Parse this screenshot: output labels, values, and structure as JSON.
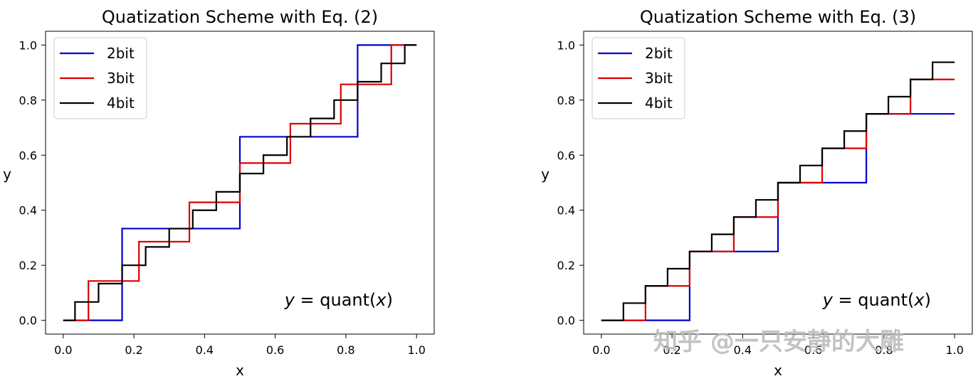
{
  "watermark": "知乎 @一只安静的大雕",
  "colors": {
    "2bit": "#0000cc",
    "3bit": "#dd0000",
    "4bit": "#000000"
  },
  "chart_data": [
    {
      "type": "line",
      "step": "post",
      "title": "Quatization Scheme with Eq. (2)",
      "xlabel": "x",
      "ylabel": "y",
      "annotation": "y = quant(x)",
      "annotation_var": "y",
      "annotation_eq": " = quant(",
      "annotation_x": "x",
      "annotation_close": ")",
      "xlim": [
        -0.05,
        1.05
      ],
      "ylim": [
        -0.05,
        1.05
      ],
      "xticks": [
        0.0,
        0.2,
        0.4,
        0.6,
        0.8,
        1.0
      ],
      "yticks": [
        0.0,
        0.2,
        0.4,
        0.6,
        0.8,
        1.0
      ],
      "xtick_labels": [
        "0.0",
        "0.2",
        "0.4",
        "0.6",
        "0.8",
        "1.0"
      ],
      "ytick_labels": [
        "0.0",
        "0.2",
        "0.4",
        "0.6",
        "0.8",
        "1.0"
      ],
      "grid": false,
      "legend": "top-left",
      "series": [
        {
          "name": "2bit",
          "x": [
            0,
            0.1667,
            0.5,
            0.8333,
            1.0
          ],
          "y": [
            0,
            0.3333,
            0.6667,
            1.0,
            1.0
          ]
        },
        {
          "name": "3bit",
          "x": [
            0,
            0.0714,
            0.2143,
            0.3571,
            0.5,
            0.6429,
            0.7857,
            0.9286,
            1.0
          ],
          "y": [
            0,
            0.1429,
            0.2857,
            0.4286,
            0.5714,
            0.7143,
            0.8571,
            1.0,
            1.0
          ]
        },
        {
          "name": "4bit",
          "x": [
            0,
            0.0333,
            0.1,
            0.1667,
            0.2333,
            0.3,
            0.3667,
            0.4333,
            0.5,
            0.5667,
            0.6333,
            0.7,
            0.7667,
            0.8333,
            0.9,
            0.9667,
            1.0
          ],
          "y": [
            0,
            0.0667,
            0.1333,
            0.2,
            0.2667,
            0.3333,
            0.4,
            0.4667,
            0.5333,
            0.6,
            0.6667,
            0.7333,
            0.8,
            0.8667,
            0.9333,
            1.0,
            1.0
          ]
        }
      ]
    },
    {
      "type": "line",
      "step": "post",
      "title": "Quatization Scheme with Eq. (3)",
      "xlabel": "x",
      "ylabel": "y",
      "annotation": "y = quant(x)",
      "annotation_var": "y",
      "annotation_eq": " = quant(",
      "annotation_x": "x",
      "annotation_close": ")",
      "xlim": [
        -0.05,
        1.05
      ],
      "ylim": [
        -0.05,
        1.05
      ],
      "xticks": [
        0.0,
        0.2,
        0.4,
        0.6,
        0.8,
        1.0
      ],
      "yticks": [
        0.0,
        0.2,
        0.4,
        0.6,
        0.8,
        1.0
      ],
      "xtick_labels": [
        "0.0",
        "0.2",
        "0.4",
        "0.6",
        "0.8",
        "1.0"
      ],
      "ytick_labels": [
        "0.0",
        "0.2",
        "0.4",
        "0.6",
        "0.8",
        "1.0"
      ],
      "grid": false,
      "legend": "top-left",
      "series": [
        {
          "name": "2bit",
          "x": [
            0,
            0.25,
            0.5,
            0.75,
            1.0
          ],
          "y": [
            0,
            0.25,
            0.5,
            0.75,
            0.75
          ]
        },
        {
          "name": "3bit",
          "x": [
            0,
            0.125,
            0.25,
            0.375,
            0.5,
            0.625,
            0.75,
            0.875,
            1.0
          ],
          "y": [
            0,
            0.125,
            0.25,
            0.375,
            0.5,
            0.625,
            0.75,
            0.875,
            0.875
          ]
        },
        {
          "name": "4bit",
          "x": [
            0,
            0.0625,
            0.125,
            0.1875,
            0.25,
            0.3125,
            0.375,
            0.4375,
            0.5,
            0.5625,
            0.625,
            0.6875,
            0.75,
            0.8125,
            0.875,
            0.9375,
            1.0
          ],
          "y": [
            0,
            0.0625,
            0.125,
            0.1875,
            0.25,
            0.3125,
            0.375,
            0.4375,
            0.5,
            0.5625,
            0.625,
            0.6875,
            0.75,
            0.8125,
            0.875,
            0.9375,
            0.9375
          ]
        }
      ]
    }
  ]
}
